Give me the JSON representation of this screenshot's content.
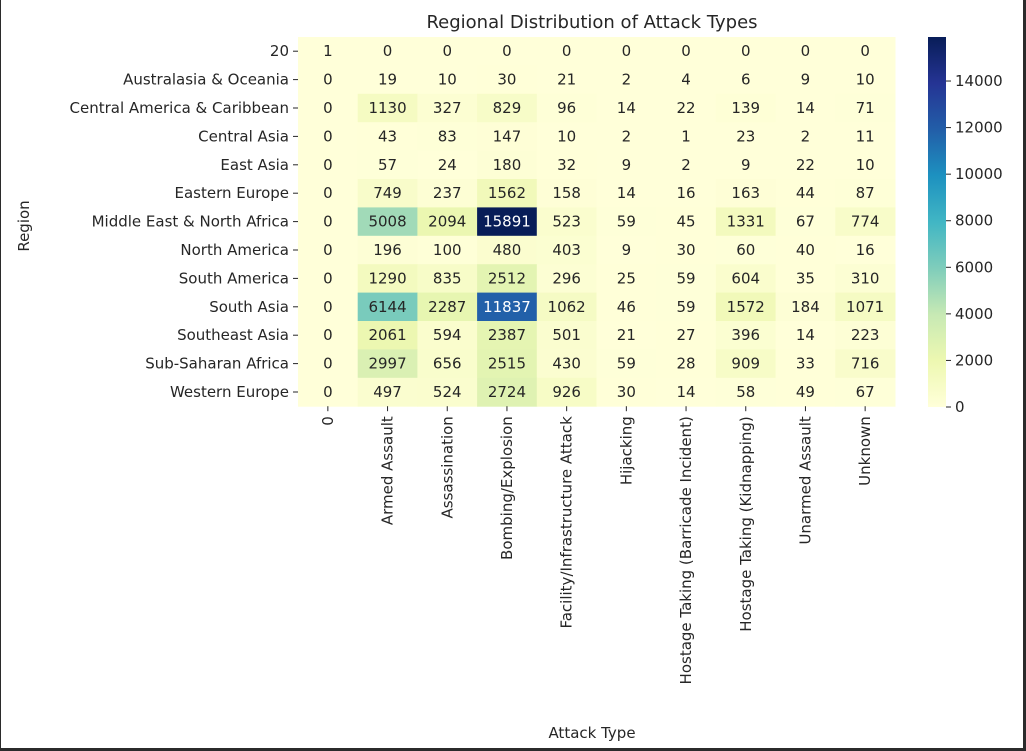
{
  "chart_data": {
    "type": "heatmap",
    "title": "Regional Distribution of Attack Types",
    "xlabel": "Attack Type",
    "ylabel": "Region",
    "columns": [
      "0",
      "Armed Assault",
      "Assassination",
      "Bombing/Explosion",
      "Facility/Infrastructure Attack",
      "Hijacking",
      "Hostage Taking (Barricade Incident)",
      "Hostage Taking (Kidnapping)",
      "Unarmed Assault",
      "Unknown"
    ],
    "rows": [
      "20",
      "Australasia & Oceania",
      "Central America & Caribbean",
      "Central Asia",
      "East Asia",
      "Eastern Europe",
      "Middle East & North Africa",
      "North America",
      "South America",
      "South Asia",
      "Southeast Asia",
      "Sub-Saharan Africa",
      "Western Europe"
    ],
    "values": [
      [
        1,
        0,
        0,
        0,
        0,
        0,
        0,
        0,
        0,
        0
      ],
      [
        0,
        19,
        10,
        30,
        21,
        2,
        4,
        6,
        9,
        10
      ],
      [
        0,
        1130,
        327,
        829,
        96,
        14,
        22,
        139,
        14,
        71
      ],
      [
        0,
        43,
        83,
        147,
        10,
        2,
        1,
        23,
        2,
        11
      ],
      [
        0,
        57,
        24,
        180,
        32,
        9,
        2,
        9,
        22,
        10
      ],
      [
        0,
        749,
        237,
        1562,
        158,
        14,
        16,
        163,
        44,
        87
      ],
      [
        0,
        5008,
        2094,
        15891,
        523,
        59,
        45,
        1331,
        67,
        774
      ],
      [
        0,
        196,
        100,
        480,
        403,
        9,
        30,
        60,
        40,
        16
      ],
      [
        0,
        1290,
        835,
        2512,
        296,
        25,
        59,
        604,
        35,
        310
      ],
      [
        0,
        6144,
        2287,
        11837,
        1062,
        46,
        59,
        1572,
        184,
        1071
      ],
      [
        0,
        2061,
        594,
        2387,
        501,
        21,
        27,
        396,
        14,
        223
      ],
      [
        0,
        2997,
        656,
        2515,
        430,
        59,
        28,
        909,
        33,
        716
      ],
      [
        0,
        497,
        524,
        2724,
        926,
        30,
        14,
        58,
        49,
        67
      ]
    ],
    "colorbar": {
      "colormap": "YlGnBu",
      "min": 0,
      "max": 15891,
      "ticks": [
        0,
        2000,
        4000,
        6000,
        8000,
        10000,
        12000,
        14000
      ]
    },
    "annotations": "cell values shown"
  }
}
